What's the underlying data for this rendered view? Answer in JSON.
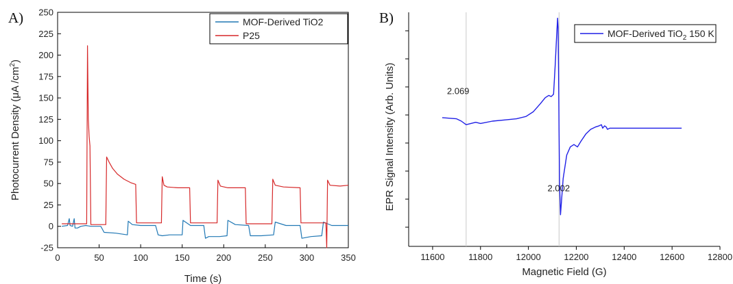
{
  "chart_data": [
    {
      "panel": "A)",
      "type": "line",
      "xlabel": "Time (s)",
      "ylabel_main": "Photocurrent Density (μA /cm",
      "ylabel_sup": "2",
      "ylabel_tail": ")",
      "xlim": [
        0,
        350
      ],
      "ylim": [
        -25,
        250
      ],
      "xticks": [
        0,
        50,
        100,
        150,
        200,
        250,
        300,
        350
      ],
      "yticks": [
        -25,
        0,
        25,
        50,
        75,
        100,
        125,
        150,
        175,
        200,
        225,
        250
      ],
      "grid": false,
      "legend_position": "top-right",
      "series": [
        {
          "name": "MOF-Derived TiO2",
          "color": "#1f77b4",
          "points": [
            [
              5,
              0
            ],
            [
              12,
              1
            ],
            [
              14,
              9
            ],
            [
              15,
              1
            ],
            [
              18,
              0
            ],
            [
              20,
              9
            ],
            [
              21,
              -2
            ],
            [
              24,
              -2
            ],
            [
              28,
              0
            ],
            [
              34,
              1
            ],
            [
              40,
              0
            ],
            [
              52,
              0
            ],
            [
              56,
              -7
            ],
            [
              70,
              -8
            ],
            [
              84,
              -10
            ],
            [
              85,
              6
            ],
            [
              90,
              2
            ],
            [
              100,
              1
            ],
            [
              118,
              1
            ],
            [
              121,
              -10
            ],
            [
              126,
              -11
            ],
            [
              135,
              -10
            ],
            [
              150,
              -10
            ],
            [
              151,
              7
            ],
            [
              160,
              1
            ],
            [
              171,
              1
            ],
            [
              176,
              1
            ],
            [
              178,
              -14
            ],
            [
              182,
              -12
            ],
            [
              195,
              -12
            ],
            [
              204,
              -11
            ],
            [
              205,
              7
            ],
            [
              214,
              2
            ],
            [
              230,
              1
            ],
            [
              232,
              -11
            ],
            [
              245,
              -11
            ],
            [
              260,
              -10
            ],
            [
              262,
              5
            ],
            [
              275,
              1
            ],
            [
              292,
              1
            ],
            [
              294,
              -14
            ],
            [
              305,
              -12
            ],
            [
              318,
              -11
            ],
            [
              320,
              5
            ],
            [
              330,
              1
            ],
            [
              350,
              1
            ]
          ]
        },
        {
          "name": "P25",
          "color": "#d62728",
          "points": [
            [
              5,
              3
            ],
            [
              35,
              3
            ],
            [
              36,
              211
            ],
            [
              37,
              125
            ],
            [
              38,
              105
            ],
            [
              39,
              94
            ],
            [
              40,
              2
            ],
            [
              58,
              2
            ],
            [
              59,
              81
            ],
            [
              62,
              75
            ],
            [
              66,
              68
            ],
            [
              72,
              61
            ],
            [
              80,
              55
            ],
            [
              88,
              51
            ],
            [
              94,
              49
            ],
            [
              95,
              4
            ],
            [
              125,
              4
            ],
            [
              126,
              58
            ],
            [
              128,
              48
            ],
            [
              132,
              46
            ],
            [
              145,
              45
            ],
            [
              159,
              45
            ],
            [
              160,
              4
            ],
            [
              192,
              4
            ],
            [
              193,
              54
            ],
            [
              196,
              47
            ],
            [
              205,
              45
            ],
            [
              226,
              45
            ],
            [
              227,
              3
            ],
            [
              258,
              3
            ],
            [
              259,
              55
            ],
            [
              262,
              48
            ],
            [
              272,
              46
            ],
            [
              292,
              45
            ],
            [
              293,
              4
            ],
            [
              323,
              4
            ],
            [
              324,
              -25
            ],
            [
              325,
              54
            ],
            [
              328,
              48
            ],
            [
              340,
              47
            ],
            [
              350,
              48
            ]
          ]
        }
      ]
    },
    {
      "panel": "B)",
      "type": "line",
      "xlabel": "Magnetic Field (G)",
      "ylabel": "EPR Signal Intensity (Arb. Units)",
      "xlim": [
        11500,
        12800
      ],
      "ylim": [
        -1.0,
        1.0
      ],
      "xticks": [
        11600,
        11800,
        12000,
        12200,
        12400,
        12600,
        12800
      ],
      "y_tick_labels": false,
      "grid": false,
      "legend_position": "top-right",
      "vertical_lines": [
        11740,
        12128
      ],
      "annotations": [
        {
          "text": "2.069",
          "x": 11660,
          "y": 0.3
        },
        {
          "text": "2.002",
          "x": 12080,
          "y": -0.53
        }
      ],
      "series": [
        {
          "name_main": "MOF-Derived TiO",
          "name_sub": "2",
          "name_tail": " 150 K",
          "color": "#1f1fe6",
          "points": [
            [
              11640,
              0.1
            ],
            [
              11700,
              0.09
            ],
            [
              11720,
              0.07
            ],
            [
              11740,
              0.04
            ],
            [
              11760,
              0.05
            ],
            [
              11780,
              0.06
            ],
            [
              11800,
              0.05
            ],
            [
              11850,
              0.07
            ],
            [
              11900,
              0.08
            ],
            [
              11950,
              0.09
            ],
            [
              11990,
              0.11
            ],
            [
              12020,
              0.15
            ],
            [
              12050,
              0.22
            ],
            [
              12070,
              0.27
            ],
            [
              12085,
              0.29
            ],
            [
              12095,
              0.28
            ],
            [
              12105,
              0.3
            ],
            [
              12112,
              0.55
            ],
            [
              12118,
              0.8
            ],
            [
              12122,
              0.95
            ],
            [
              12124,
              0.87
            ],
            [
              12126,
              0.5
            ],
            [
              12128,
              0.0
            ],
            [
              12130,
              -0.45
            ],
            [
              12134,
              -0.73
            ],
            [
              12138,
              -0.62
            ],
            [
              12145,
              -0.42
            ],
            [
              12160,
              -0.22
            ],
            [
              12175,
              -0.15
            ],
            [
              12190,
              -0.13
            ],
            [
              12205,
              -0.15
            ],
            [
              12220,
              -0.1
            ],
            [
              12240,
              -0.04
            ],
            [
              12260,
              0.0
            ],
            [
              12280,
              0.02
            ],
            [
              12295,
              0.03
            ],
            [
              12305,
              0.04
            ],
            [
              12310,
              0.01
            ],
            [
              12318,
              0.03
            ],
            [
              12325,
              0.02
            ],
            [
              12330,
              0.0
            ],
            [
              12340,
              0.01
            ],
            [
              12360,
              0.01
            ],
            [
              12400,
              0.01
            ],
            [
              12500,
              0.01
            ],
            [
              12600,
              0.01
            ],
            [
              12640,
              0.01
            ]
          ]
        }
      ]
    }
  ]
}
